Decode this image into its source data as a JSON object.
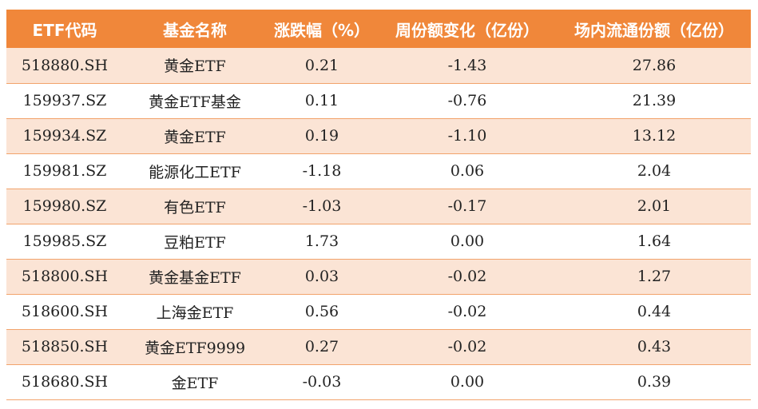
{
  "table": {
    "headers": [
      "ETF代码",
      "基金名称",
      "涨跌幅（%）",
      "周份额变化（亿份）",
      "场内流通份额（亿份）"
    ],
    "rows": [
      {
        "code": "518880.SH",
        "name": "黄金ETF",
        "change": "0.21",
        "weekly_share_change": "-1.43",
        "float_shares": "27.86"
      },
      {
        "code": "159937.SZ",
        "name": "黄金ETF基金",
        "change": "0.11",
        "weekly_share_change": "-0.76",
        "float_shares": "21.39"
      },
      {
        "code": "159934.SZ",
        "name": "黄金ETF",
        "change": "0.19",
        "weekly_share_change": "-1.10",
        "float_shares": "13.12"
      },
      {
        "code": "159981.SZ",
        "name": "能源化工ETF",
        "change": "-1.18",
        "weekly_share_change": "0.06",
        "float_shares": "2.04"
      },
      {
        "code": "159980.SZ",
        "name": "有色ETF",
        "change": "-1.03",
        "weekly_share_change": "-0.17",
        "float_shares": "2.01"
      },
      {
        "code": "159985.SZ",
        "name": "豆粕ETF",
        "change": "1.73",
        "weekly_share_change": "0.00",
        "float_shares": "1.64"
      },
      {
        "code": "518800.SH",
        "name": "黄金基金ETF",
        "change": "0.03",
        "weekly_share_change": "-0.02",
        "float_shares": "1.27"
      },
      {
        "code": "518600.SH",
        "name": "上海金ETF",
        "change": "0.56",
        "weekly_share_change": "-0.02",
        "float_shares": "0.44"
      },
      {
        "code": "518850.SH",
        "name": "黄金ETF9999",
        "change": "0.27",
        "weekly_share_change": "-0.02",
        "float_shares": "0.43"
      },
      {
        "code": "518680.SH",
        "name": "金ETF",
        "change": "-0.03",
        "weekly_share_change": "0.00",
        "float_shares": "0.39"
      }
    ]
  },
  "colors": {
    "header_bg": "#f0873a",
    "stripe_bg": "#fbe4d5",
    "border": "#f2a36c"
  }
}
